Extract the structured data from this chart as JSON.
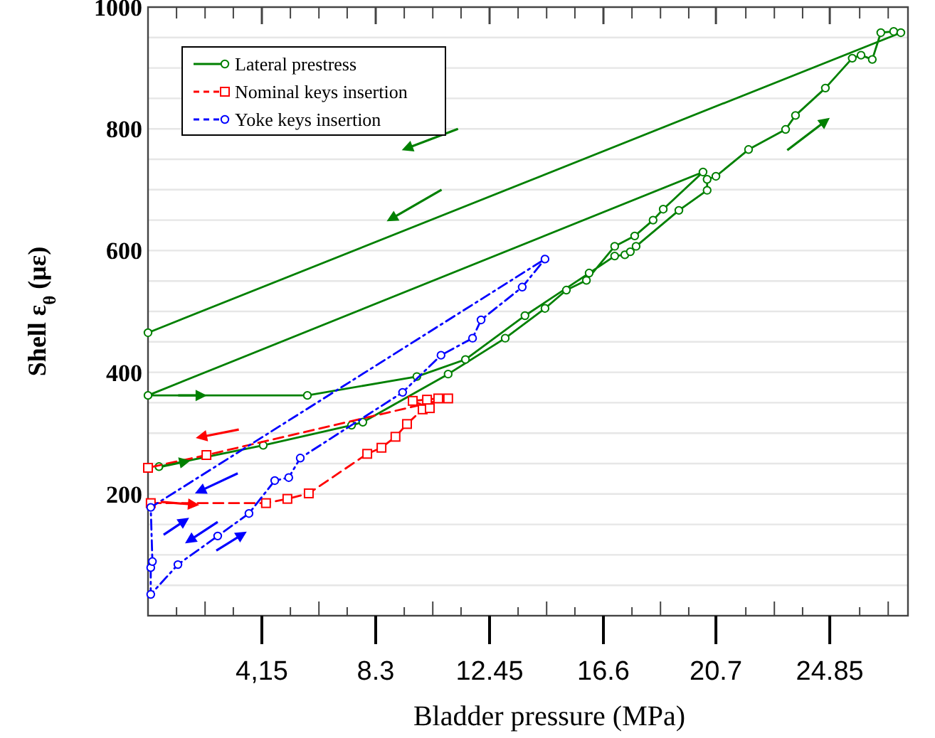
{
  "chart_data": {
    "type": "line",
    "xlabel": "Bladder pressure (MPa)",
    "ylabel": "Shell ε$_{θ}$ (με)",
    "xlim": [
      0,
      27.7
    ],
    "ylim": [
      0,
      1000
    ],
    "xticks": [
      {
        "value": 1.04,
        "label": null
      },
      {
        "value": 2.08,
        "label": null
      },
      {
        "value": 3.11,
        "label": null
      },
      {
        "value": 4.15,
        "label": "4,15"
      },
      {
        "value": 5.19,
        "label": null
      },
      {
        "value": 6.23,
        "label": null
      },
      {
        "value": 7.26,
        "label": null
      },
      8.3,
      {
        "value": 9.34,
        "label": null
      },
      {
        "value": 10.38,
        "label": null
      },
      {
        "value": 11.41,
        "label": null
      },
      12.45,
      {
        "value": 13.49,
        "label": null
      },
      {
        "value": 14.53,
        "label": null
      },
      {
        "value": 15.56,
        "label": null
      },
      16.6,
      {
        "value": 17.64,
        "label": null
      },
      {
        "value": 18.68,
        "label": null
      },
      {
        "value": 19.71,
        "label": null
      },
      20.7,
      {
        "value": 21.79,
        "label": null
      },
      {
        "value": 22.83,
        "label": null
      },
      {
        "value": 23.86,
        "label": null
      },
      24.85,
      {
        "value": 25.94,
        "label": null
      },
      {
        "value": 26.98,
        "label": null
      }
    ],
    "yticks": [
      {
        "value": 50,
        "label": null
      },
      {
        "value": 100,
        "label": null
      },
      {
        "value": 150,
        "label": null
      },
      200,
      {
        "value": 250,
        "label": null
      },
      {
        "value": 300,
        "label": null
      },
      {
        "value": 350,
        "label": null
      },
      400,
      {
        "value": 450,
        "label": null
      },
      {
        "value": 500,
        "label": null
      },
      {
        "value": 550,
        "label": null
      },
      600,
      {
        "value": 650,
        "label": null
      },
      {
        "value": 700,
        "label": null
      },
      {
        "value": 750,
        "label": null
      },
      800,
      {
        "value": 850,
        "label": null
      },
      {
        "value": 900,
        "label": null
      },
      {
        "value": 950,
        "label": null
      },
      1000
    ],
    "grid": "y",
    "legend": "top left",
    "series": [
      {
        "name": "Lateral prestress",
        "color": "#008000",
        "marker": "circle",
        "line_style": "solid",
        "x": [
          0.4,
          4.2,
          7.42,
          7.83,
          10.94,
          13.02,
          14.47,
          15.25,
          15.98,
          17.01,
          17.74,
          18.41,
          18.78,
          20.23,
          0,
          5.81,
          9.8,
          11.57,
          13.74,
          16.08,
          17.01,
          17.38,
          17.58,
          17.79,
          19.35,
          20.38,
          20.38,
          20.7,
          21.89,
          23.24,
          23.6,
          24.69,
          25.67,
          25.99,
          26.4,
          26.71,
          27.18,
          27.44,
          0
        ],
        "values": [
          245,
          280,
          313,
          318,
          397,
          456,
          505,
          535,
          551,
          607,
          624,
          650,
          668,
          729,
          362,
          362,
          393,
          421,
          493,
          563,
          591,
          593,
          598,
          607,
          666,
          699,
          717,
          722,
          766,
          799,
          822,
          867,
          916,
          921,
          914,
          958,
          960,
          958,
          465
        ]
      },
      {
        "name": "Nominal keys insertion",
        "color": "#ff0000",
        "marker": "square",
        "line_style": "dashed",
        "x": [
          0.1,
          4.3,
          5.08,
          5.86,
          7.99,
          8.51,
          9.02,
          9.44,
          10.01,
          10.27,
          9.65,
          10.17,
          10.58,
          10.94,
          2.13,
          0
        ],
        "values": [
          185,
          185,
          192,
          201,
          266,
          276,
          294,
          315,
          339,
          341,
          353,
          355,
          357,
          357,
          264,
          243
        ]
      },
      {
        "name": "Yoke keys insertion",
        "color": "#0000ff",
        "marker": "circle",
        "line_style": "dashdot",
        "x": [
          0.1,
          0.1,
          1.09,
          2.54,
          3.68,
          4.62,
          5.13,
          5.55,
          9.28,
          10.68,
          11.83,
          12.14,
          13.64,
          14.47,
          0.1,
          0.16
        ],
        "values": [
          79,
          35,
          84,
          131,
          168,
          222,
          227,
          259,
          367,
          428,
          456,
          486,
          540,
          586,
          178,
          89
        ]
      }
    ]
  }
}
